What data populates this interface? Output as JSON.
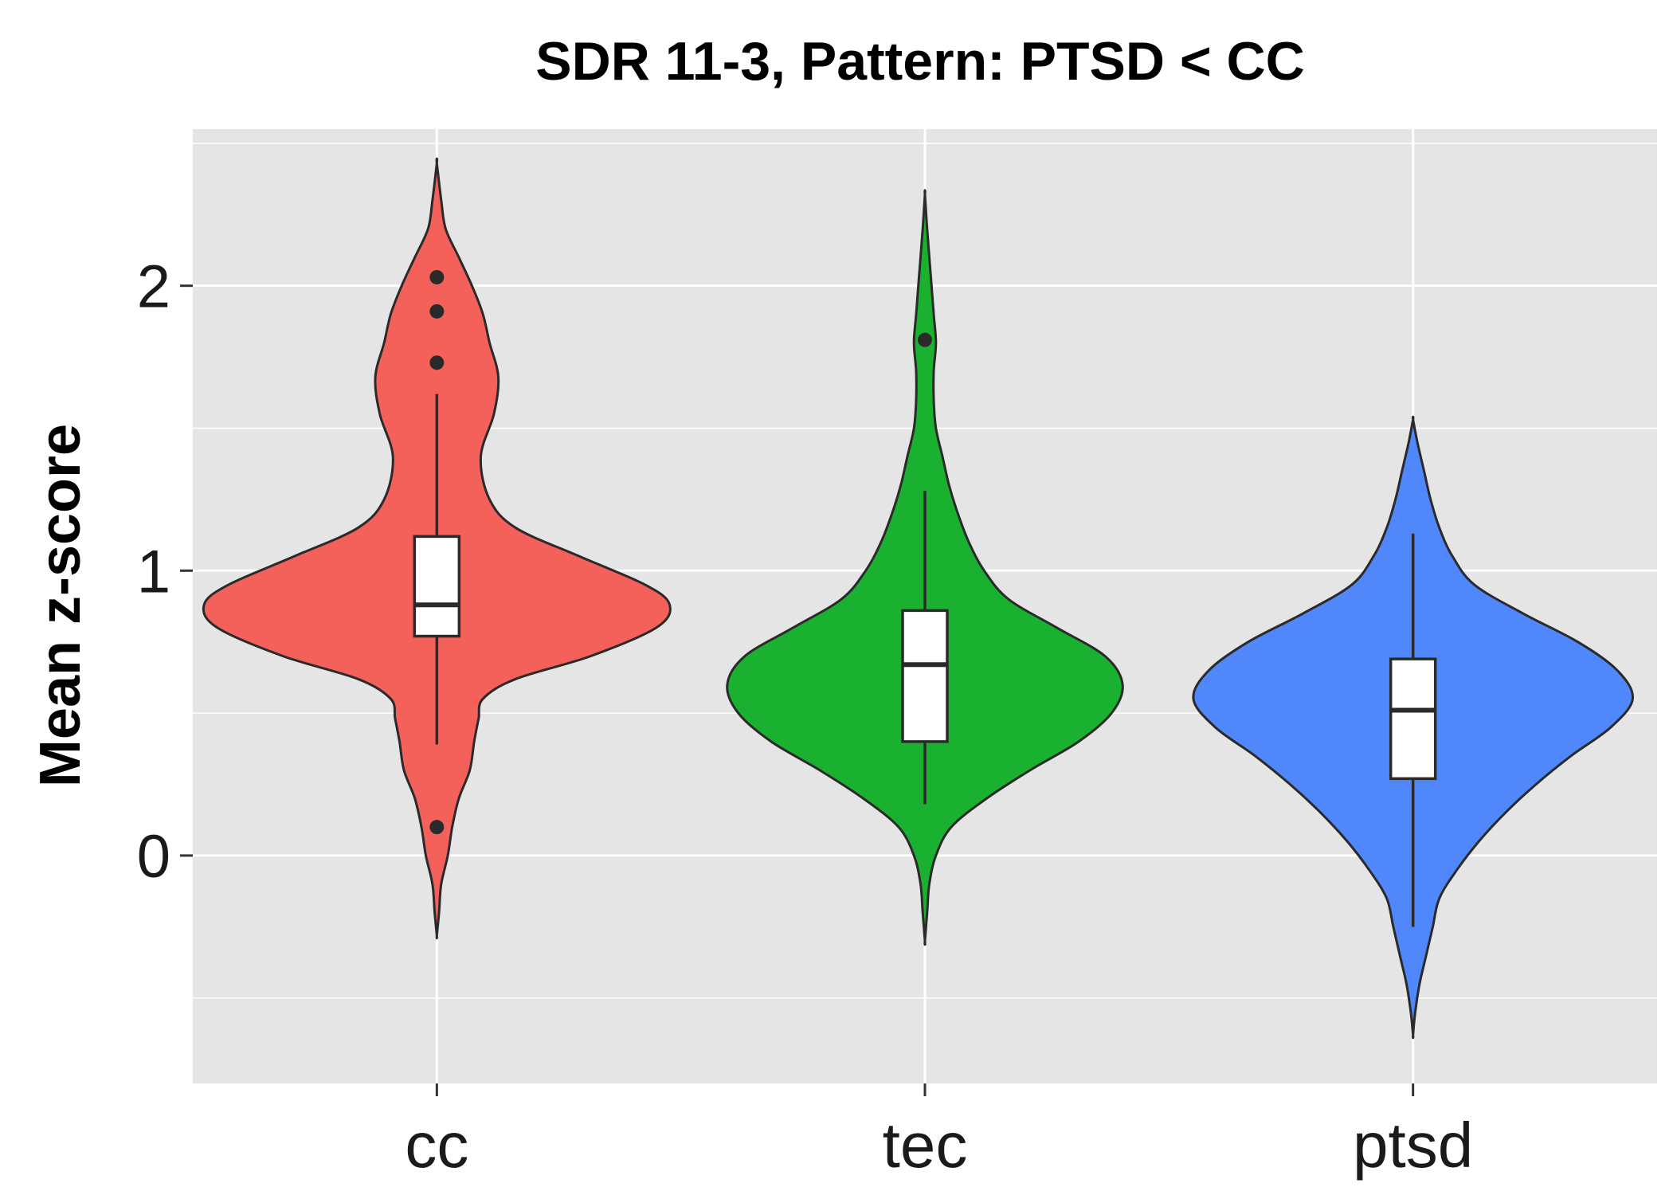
{
  "chart_data": {
    "type": "violin",
    "title": "SDR 11-3, Pattern: PTSD < CC",
    "xlabel": "",
    "ylabel": "Mean z-score",
    "ylim": [
      -0.8,
      2.55
    ],
    "yticks": [
      0,
      1,
      2
    ],
    "ytick_labels": [
      "0",
      "1",
      "2"
    ],
    "grid": true,
    "legend": "none",
    "colors": {
      "panel": "#e5e5e5",
      "grid": "#ffffff",
      "outline": "#2a2a2a",
      "box_fill": "#ffffff"
    },
    "categories": [
      "cc",
      "tec",
      "ptsd"
    ],
    "groups": [
      {
        "name": "cc",
        "color": "#f4615b",
        "min": -0.28,
        "max": 2.43,
        "box": {
          "q1": 0.77,
          "median": 0.88,
          "q3": 1.12,
          "whisker_low": 0.39,
          "whisker_high": 1.62
        },
        "outliers": [
          0.1,
          1.73,
          1.91,
          2.03
        ],
        "density": [
          [
            -0.28,
            0.0
          ],
          [
            -0.2,
            0.01
          ],
          [
            -0.1,
            0.02
          ],
          [
            0.0,
            0.05
          ],
          [
            0.1,
            0.07
          ],
          [
            0.2,
            0.1
          ],
          [
            0.3,
            0.15
          ],
          [
            0.4,
            0.17
          ],
          [
            0.48,
            0.19
          ],
          [
            0.55,
            0.21
          ],
          [
            0.62,
            0.36
          ],
          [
            0.7,
            0.7
          ],
          [
            0.8,
            1.0
          ],
          [
            0.88,
            1.06
          ],
          [
            0.95,
            0.95
          ],
          [
            1.05,
            0.65
          ],
          [
            1.15,
            0.36
          ],
          [
            1.25,
            0.24
          ],
          [
            1.4,
            0.2
          ],
          [
            1.55,
            0.26
          ],
          [
            1.68,
            0.28
          ],
          [
            1.8,
            0.24
          ],
          [
            1.9,
            0.21
          ],
          [
            2.0,
            0.16
          ],
          [
            2.1,
            0.1
          ],
          [
            2.2,
            0.04
          ],
          [
            2.3,
            0.02
          ],
          [
            2.43,
            0.0
          ]
        ]
      },
      {
        "name": "tec",
        "color": "#1bb130",
        "min": -0.3,
        "max": 2.32,
        "box": {
          "q1": 0.4,
          "median": 0.67,
          "q3": 0.86,
          "whisker_low": 0.18,
          "whisker_high": 1.28
        },
        "outliers": [
          1.81
        ],
        "density": [
          [
            -0.3,
            0.0
          ],
          [
            -0.2,
            0.01
          ],
          [
            -0.1,
            0.02
          ],
          [
            0.0,
            0.05
          ],
          [
            0.1,
            0.12
          ],
          [
            0.2,
            0.28
          ],
          [
            0.3,
            0.48
          ],
          [
            0.4,
            0.7
          ],
          [
            0.5,
            0.85
          ],
          [
            0.6,
            0.9
          ],
          [
            0.7,
            0.82
          ],
          [
            0.8,
            0.6
          ],
          [
            0.9,
            0.38
          ],
          [
            1.0,
            0.27
          ],
          [
            1.1,
            0.2
          ],
          [
            1.2,
            0.15
          ],
          [
            1.3,
            0.11
          ],
          [
            1.4,
            0.08
          ],
          [
            1.5,
            0.05
          ],
          [
            1.6,
            0.04
          ],
          [
            1.7,
            0.04
          ],
          [
            1.8,
            0.05
          ],
          [
            1.9,
            0.04
          ],
          [
            2.0,
            0.03
          ],
          [
            2.1,
            0.02
          ],
          [
            2.2,
            0.01
          ],
          [
            2.32,
            0.0
          ]
        ]
      },
      {
        "name": "ptsd",
        "color": "#5087fb",
        "min": -0.63,
        "max": 1.53,
        "box": {
          "q1": 0.27,
          "median": 0.51,
          "q3": 0.69,
          "whisker_low": -0.25,
          "whisker_high": 1.13
        },
        "outliers": [],
        "density": [
          [
            -0.63,
            0.0
          ],
          [
            -0.55,
            0.01
          ],
          [
            -0.45,
            0.03
          ],
          [
            -0.35,
            0.06
          ],
          [
            -0.25,
            0.09
          ],
          [
            -0.15,
            0.12
          ],
          [
            -0.05,
            0.2
          ],
          [
            0.05,
            0.3
          ],
          [
            0.15,
            0.42
          ],
          [
            0.25,
            0.56
          ],
          [
            0.35,
            0.72
          ],
          [
            0.45,
            0.9
          ],
          [
            0.55,
            1.0
          ],
          [
            0.65,
            0.93
          ],
          [
            0.75,
            0.75
          ],
          [
            0.85,
            0.5
          ],
          [
            0.95,
            0.28
          ],
          [
            1.05,
            0.18
          ],
          [
            1.15,
            0.12
          ],
          [
            1.25,
            0.08
          ],
          [
            1.35,
            0.05
          ],
          [
            1.45,
            0.02
          ],
          [
            1.53,
            0.0
          ]
        ]
      }
    ]
  }
}
